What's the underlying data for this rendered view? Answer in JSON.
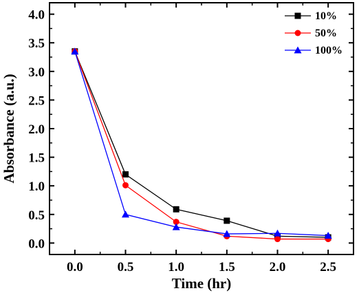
{
  "chart_data": {
    "type": "line",
    "xlabel": "Time (hr)",
    "ylabel": "Absorbance (a.u.)",
    "xlim": [
      -0.25,
      2.75
    ],
    "ylim": [
      -0.2,
      4.2
    ],
    "x_ticks": [
      "0.0",
      "0.5",
      "1.0",
      "1.5",
      "2.0",
      "2.5"
    ],
    "y_ticks": [
      "0.0",
      "0.5",
      "1.0",
      "1.5",
      "2.0",
      "2.5",
      "3.0",
      "3.5",
      "4.0"
    ],
    "x": [
      0.0,
      0.5,
      1.0,
      1.5,
      2.0,
      2.5
    ],
    "legend_position": "top-right",
    "grid": false,
    "series": [
      {
        "name": "10%",
        "color": "#000000",
        "marker": "square",
        "values": [
          3.35,
          1.2,
          0.59,
          0.39,
          0.12,
          0.1
        ]
      },
      {
        "name": "50%",
        "color": "#ff0000",
        "marker": "circle",
        "values": [
          3.35,
          1.01,
          0.37,
          0.12,
          0.07,
          0.07
        ]
      },
      {
        "name": "100%",
        "color": "#0000ff",
        "marker": "triangle",
        "values": [
          3.35,
          0.5,
          0.28,
          0.16,
          0.17,
          0.13
        ]
      }
    ]
  }
}
